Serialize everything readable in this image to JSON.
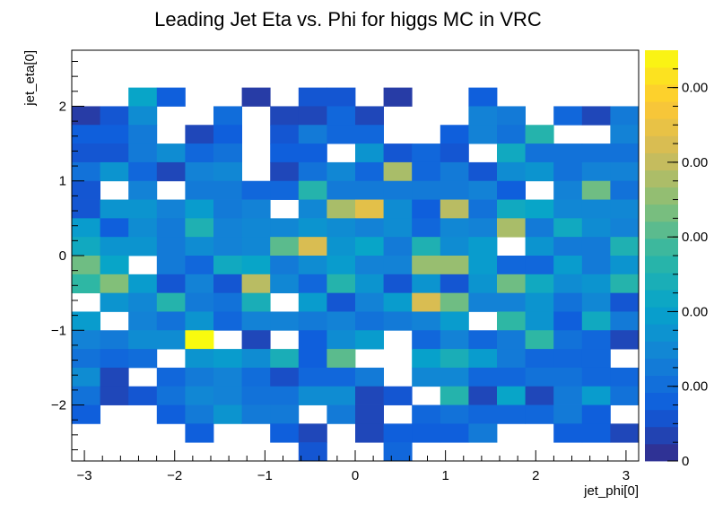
{
  "chart_data": {
    "type": "heatmap",
    "title": "Leading Jet Eta vs. Phi for higgs MC in VRC",
    "xlabel": "jet_phi[0]",
    "ylabel": "jet_eta[0]",
    "xlim": [
      -3.14,
      3.14
    ],
    "ylim": [
      -2.75,
      2.75
    ],
    "x_ticks": [
      -3,
      -2,
      -1,
      0,
      1,
      2,
      3
    ],
    "y_ticks": [
      -2,
      -1,
      0,
      1,
      2
    ],
    "colorbar": {
      "min": 0,
      "max": 0.011,
      "tick_labels": [
        "0",
        "0.00",
        "0.00",
        "0.00",
        "0.00",
        "0.00"
      ]
    },
    "grid": false,
    "nx": 20,
    "ny": 22,
    "z_rows_top_to_bottom": [
      [
        0,
        0,
        0,
        0,
        0,
        0,
        0,
        0,
        0,
        0,
        0,
        0,
        0,
        0,
        0,
        0,
        0,
        0,
        0,
        0
      ],
      [
        0,
        0,
        0,
        0,
        0,
        0,
        0,
        0,
        0,
        0,
        0,
        0,
        0,
        0,
        0,
        0,
        0,
        0,
        0,
        0
      ],
      [
        0,
        0,
        0.0042,
        0.0015,
        0,
        0,
        0.0005,
        0,
        0.0012,
        0.0012,
        0,
        0.0005,
        0,
        0,
        0.0015,
        0,
        0,
        0,
        0,
        0
      ],
      [
        0.0005,
        0.0012,
        0.0032,
        0,
        0,
        0.002,
        0,
        0.0008,
        0.0008,
        0.0018,
        0.0008,
        0,
        0,
        0,
        0.0028,
        0.0025,
        0,
        0.0018,
        0.0008,
        0.0025
      ],
      [
        0.0015,
        0.0015,
        0.0025,
        0,
        0.0008,
        0.0015,
        0,
        0.0012,
        0.0025,
        0.0018,
        0.0018,
        0,
        0,
        0.0015,
        0.0028,
        0.0022,
        0.0052,
        0,
        0,
        0.0028
      ],
      [
        0.0012,
        0.0012,
        0.0025,
        0.0032,
        0.0018,
        0.0022,
        0,
        0.0015,
        0.0015,
        0,
        0.0035,
        0.0012,
        0.0018,
        0.0012,
        0,
        0.0045,
        0.0022,
        0.0022,
        0.0022,
        0.0022
      ],
      [
        0.0022,
        0.0035,
        0.0018,
        0.0008,
        0.0028,
        0.003,
        0,
        0.0008,
        0.0022,
        0.003,
        0.0018,
        0.0075,
        0.0018,
        0.0025,
        0.0012,
        0.0032,
        0.0035,
        0.0022,
        0.0028,
        0.0028
      ],
      [
        0.0012,
        0,
        0.0028,
        0,
        0.0025,
        0.0025,
        0.0018,
        0.0018,
        0.0052,
        0.0025,
        0.0025,
        0.0025,
        0.0025,
        0.0025,
        0.0028,
        0.0015,
        0,
        0.0028,
        0.0065,
        0.0022
      ],
      [
        0.0012,
        0.0035,
        0.0035,
        0.0028,
        0.0038,
        0.0025,
        0.0028,
        0,
        0.003,
        0.0075,
        0.0088,
        0.0032,
        0.0015,
        0.0078,
        0.0022,
        0.0045,
        0.0042,
        0.003,
        0.003,
        0.003
      ],
      [
        0.0038,
        0.0015,
        0.0032,
        0.0025,
        0.005,
        0.0028,
        0.003,
        0.003,
        0.0035,
        0.0032,
        0.0028,
        0.0032,
        0.0018,
        0.003,
        0.0028,
        0.0075,
        0.0025,
        0.0045,
        0.0032,
        0.0028
      ],
      [
        0.0045,
        0.0035,
        0.0035,
        0.0025,
        0.0032,
        0.0028,
        0.003,
        0.0062,
        0.0085,
        0.0035,
        0.0042,
        0.0025,
        0.005,
        0.0032,
        0.0038,
        0,
        0.0035,
        0.0025,
        0.0025,
        0.005
      ],
      [
        0.0065,
        0.0042,
        0,
        0.0025,
        0.0018,
        0.0045,
        0.0042,
        0.0025,
        0.0032,
        0.0038,
        0.0028,
        0.0028,
        0.0072,
        0.0072,
        0.0038,
        0.0018,
        0.0018,
        0.0038,
        0.0025,
        0.0035
      ],
      [
        0.0055,
        0.0068,
        0.0038,
        0.0012,
        0.0028,
        0.0012,
        0.0078,
        0.003,
        0.0018,
        0.0052,
        0.0035,
        0.0012,
        0.0035,
        0.0012,
        0.0035,
        0.0065,
        0.0045,
        0.0032,
        0.0035,
        0.0052
      ],
      [
        0,
        0.0035,
        0.003,
        0.0052,
        0.0025,
        0.0022,
        0.0048,
        0,
        0.0038,
        0.0012,
        0.0028,
        0.0038,
        0.0085,
        0.0065,
        0.0028,
        0.0028,
        0.0035,
        0.0022,
        0.003,
        0.0012
      ],
      [
        0.0038,
        0,
        0.0028,
        0.0022,
        0.0035,
        0.0018,
        0.0028,
        0.0028,
        0.0025,
        0.0028,
        0.0022,
        0.0025,
        0.0028,
        0.0038,
        0,
        0.0055,
        0.0035,
        0.0015,
        0.0045,
        0.0025
      ],
      [
        0.0028,
        0.0025,
        0.0032,
        0.0032,
        0.011,
        0,
        0.0008,
        0,
        0.0015,
        0.0032,
        0.0038,
        0,
        0.0018,
        0.0028,
        0.0018,
        0.0025,
        0.0055,
        0.0022,
        0.0018,
        0.0008
      ],
      [
        0.0022,
        0.0018,
        0.002,
        0,
        0.0035,
        0.0038,
        0.0032,
        0.0048,
        0.0015,
        0.0062,
        0,
        0,
        0.004,
        0.0048,
        0.0038,
        0.0025,
        0.0018,
        0.0018,
        0.0018,
        0
      ],
      [
        0.0032,
        0.0008,
        0,
        0.0018,
        0.0025,
        0.0028,
        0.002,
        0.001,
        0.0018,
        0.0018,
        0.0025,
        0,
        0.003,
        0.003,
        0.0018,
        0.0018,
        0.0022,
        0.0022,
        0.0018,
        0.0018
      ],
      [
        0.0022,
        0.0008,
        0.0012,
        0.0022,
        0.003,
        0.0028,
        0.0022,
        0.0022,
        0.0032,
        0.0032,
        0.0008,
        0.0012,
        0,
        0.0052,
        0.0008,
        0.0042,
        0.0008,
        0.0025,
        0.0038,
        0.0022
      ],
      [
        0.0015,
        0,
        0,
        0.0015,
        0.0025,
        0.0035,
        0.0025,
        0.0025,
        0,
        0.0025,
        0.0008,
        0,
        0.0018,
        0.0022,
        0.0018,
        0.0018,
        0.0018,
        0.0025,
        0.0015,
        0
      ],
      [
        0,
        0,
        0,
        0,
        0.0015,
        0,
        0,
        0.0015,
        0.0008,
        0,
        0.0008,
        0.0015,
        0.0015,
        0.0015,
        0.0025,
        0,
        0,
        0.0015,
        0.0015,
        0.0008
      ],
      [
        0,
        0,
        0,
        0,
        0,
        0,
        0,
        0,
        0.0012,
        0,
        0,
        0.0018,
        0,
        0,
        0,
        0,
        0,
        0,
        0,
        0
      ]
    ]
  }
}
